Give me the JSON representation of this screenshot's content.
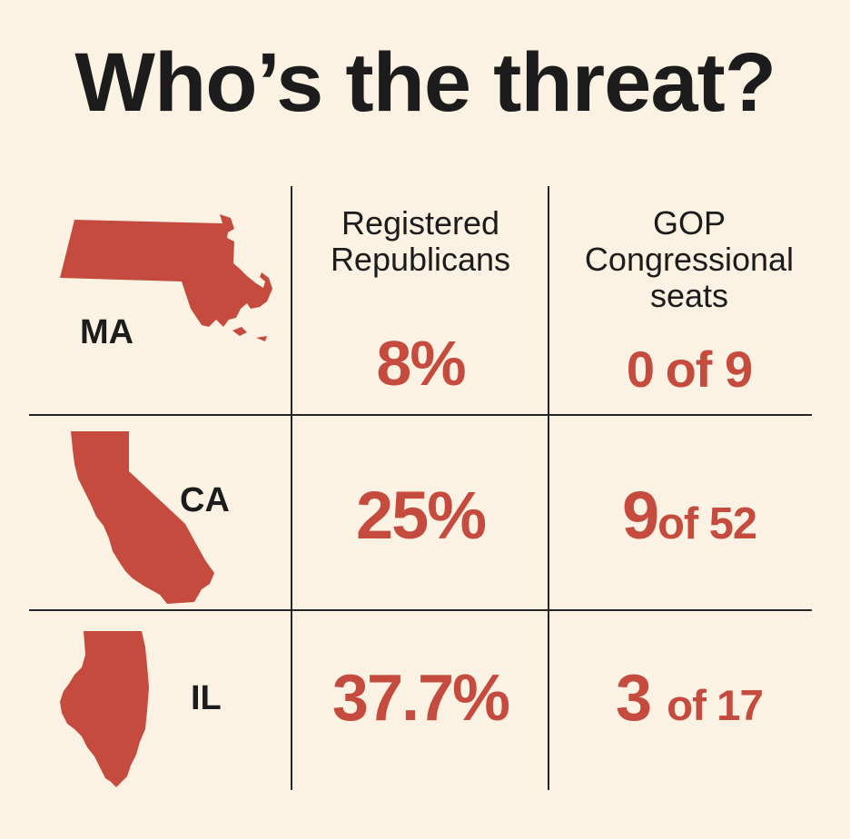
{
  "title": "Who’s the threat?",
  "colors": {
    "accent": "#c44b3e",
    "ink": "#1c1c1c",
    "background": "#fcf2e3"
  },
  "chart_data": {
    "type": "table",
    "title": "Who’s the threat?",
    "columns": [
      "Registered Republicans",
      "GOP Congressional seats"
    ],
    "header_lines": [
      [
        "Registered",
        "Republicans"
      ],
      [
        "GOP",
        "Congressional",
        "seats"
      ]
    ],
    "rows": [
      {
        "state": "MA",
        "shape_icon": "massachusetts-map-icon",
        "registered_republicans_pct": 8,
        "registered_display": "8%",
        "gop_seats": 0,
        "total_seats": 9,
        "seats_num": "0",
        "seats_rest": "of 9"
      },
      {
        "state": "CA",
        "shape_icon": "california-map-icon",
        "registered_republicans_pct": 25,
        "registered_display": "25%",
        "gop_seats": 9,
        "total_seats": 52,
        "seats_num": "9",
        "seats_rest": "of 52"
      },
      {
        "state": "IL",
        "shape_icon": "illinois-map-icon",
        "registered_republicans_pct": 37.7,
        "registered_display": "37.7%",
        "gop_seats": 3,
        "total_seats": 17,
        "seats_num": "3",
        "seats_rest": "of 17"
      }
    ]
  }
}
